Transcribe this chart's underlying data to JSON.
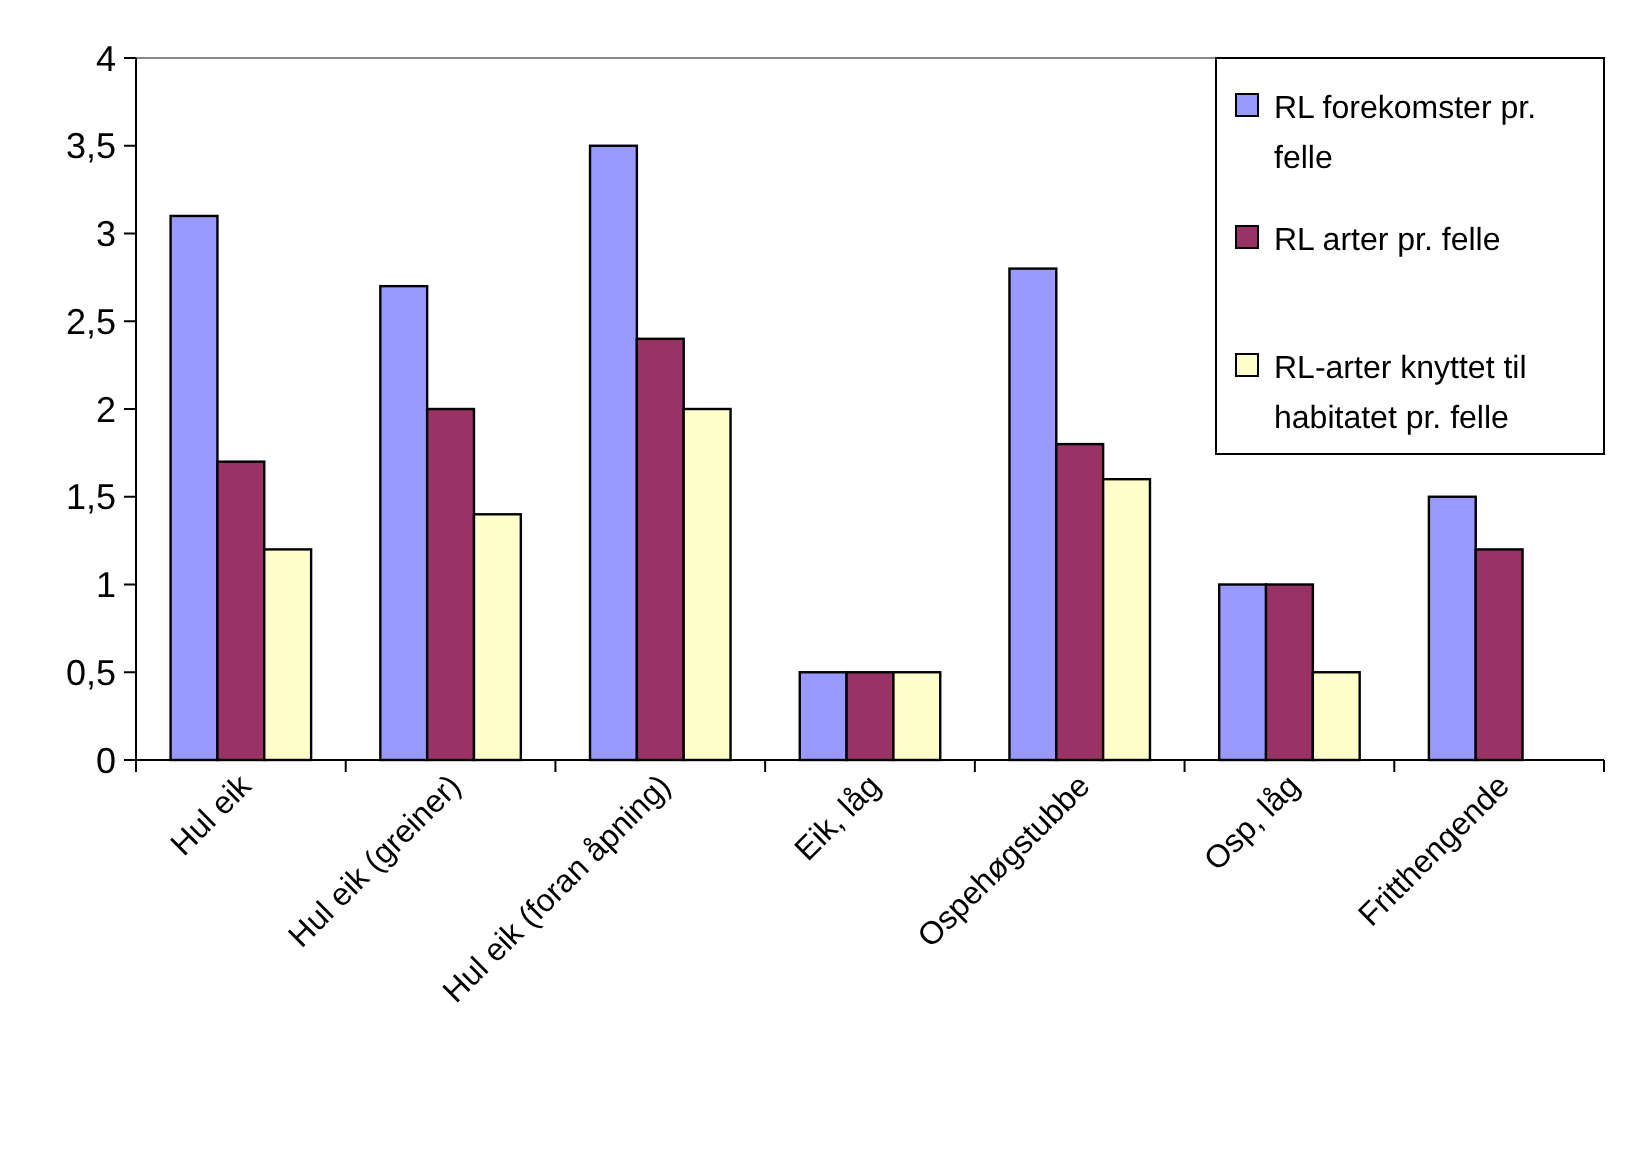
{
  "chart_data": {
    "type": "bar",
    "categories": [
      "Hul eik",
      "Hul eik (greiner)",
      "Hul eik (foran  åpning)",
      "Eik, låg",
      "Ospehøgstubbe",
      "Osp, låg",
      "Fritthengende"
    ],
    "series": [
      {
        "name": "RL forekomster pr. felle",
        "color": "#9999ff",
        "values": [
          3.1,
          2.7,
          3.5,
          0.5,
          2.8,
          1.0,
          1.5
        ]
      },
      {
        "name": "RL arter pr. felle",
        "color": "#993366",
        "values": [
          1.7,
          2.0,
          2.4,
          0.5,
          1.8,
          1.0,
          1.2
        ]
      },
      {
        "name": "RL-arter knyttet til habitatet pr. felle",
        "color": "#ffffcc",
        "values": [
          1.2,
          1.4,
          2.0,
          0.5,
          1.6,
          0.5,
          null
        ]
      }
    ],
    "ylim": [
      0,
      4
    ],
    "yticks": [
      0,
      {
        "value": 0.5,
        "label": "0,5"
      },
      1,
      {
        "value": 1.5,
        "label": "1,5"
      },
      2,
      {
        "value": 2.5,
        "label": "2,5"
      },
      3,
      {
        "value": 3.5,
        "label": "3,5"
      },
      4
    ],
    "grid": false,
    "legend": "top right"
  }
}
